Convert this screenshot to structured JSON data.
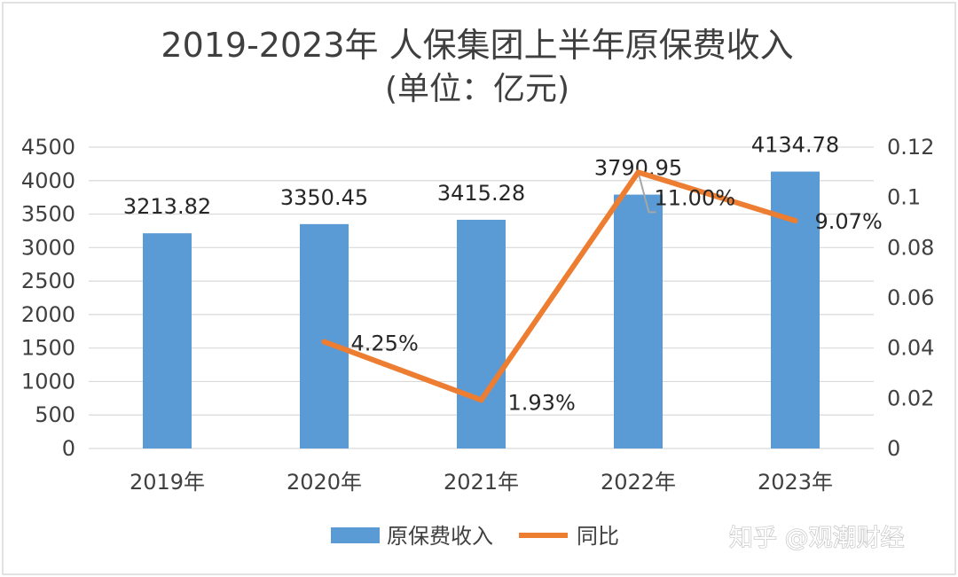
{
  "chart_data": {
    "type": "bar",
    "title": "2019-2023年 人保集团上半年原保费收入",
    "subtitle": "(单位：亿元)",
    "categories": [
      "2019年",
      "2020年",
      "2021年",
      "2022年",
      "2023年"
    ],
    "series": [
      {
        "name": "原保费收入",
        "type": "bar",
        "axis": "left",
        "color": "#5b9bd5",
        "values": [
          3213.82,
          3350.45,
          3415.28,
          3790.95,
          4134.78
        ],
        "labels": [
          "3213.82",
          "3350.45",
          "3415.28",
          "3790.95",
          "4134.78"
        ]
      },
      {
        "name": "同比",
        "type": "line",
        "axis": "right",
        "color": "#ed7d31",
        "values": [
          null,
          0.0425,
          0.0193,
          0.11,
          0.0907
        ],
        "labels": [
          "",
          "4.25%",
          "1.93%",
          "11.00%",
          "9.07%"
        ]
      }
    ],
    "y_left": {
      "min": 0,
      "max": 4500,
      "ticks": [
        "0",
        "500",
        "1000",
        "1500",
        "2000",
        "2500",
        "3000",
        "3500",
        "4000",
        "4500"
      ]
    },
    "y_right": {
      "min": 0,
      "max": 0.12,
      "ticks": [
        "0",
        "0.02",
        "0.04",
        "0.06",
        "0.08",
        "0.1",
        "0.12"
      ]
    },
    "grid": true,
    "legend_position": "bottom"
  },
  "watermark": "知乎 @观潮财经"
}
